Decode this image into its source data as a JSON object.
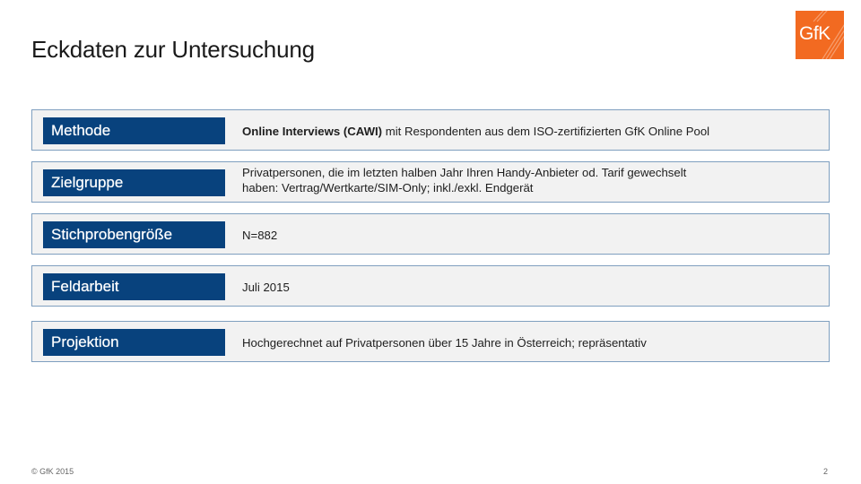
{
  "slide": {
    "title": "Eckdaten zur Untersuchung",
    "logo_text": "GfK"
  },
  "rows": [
    {
      "label": "Methode",
      "text_bold": "Online Interviews (CAWI)",
      "text": " mit Respondenten aus dem ISO-zertifizierten GfK Online Pool"
    },
    {
      "label": "Zielgruppe",
      "text_line1": "Privatpersonen, die im letzten halben Jahr Ihren Handy-Anbieter od. Tarif gewechselt",
      "text_line2": "haben:  Vertrag/Wertkarte/SIM-Only;  inkl./exkl. Endgerät"
    },
    {
      "label": "Stichprobengröße",
      "text": "N=882"
    },
    {
      "label": "Feldarbeit",
      "text": "Juli 2015"
    },
    {
      "label": "Projektion",
      "text": "Hochgerechnet auf Privatpersonen über 15 Jahre in Österreich; repräsentativ"
    }
  ],
  "footer": {
    "copyright": "© GfK 2015",
    "page_number": "2"
  },
  "colors": {
    "label_bg": "#08427d",
    "row_bg": "#f2f2f2",
    "row_border": "#7f9fbf",
    "logo_bg": "#f26a21"
  }
}
